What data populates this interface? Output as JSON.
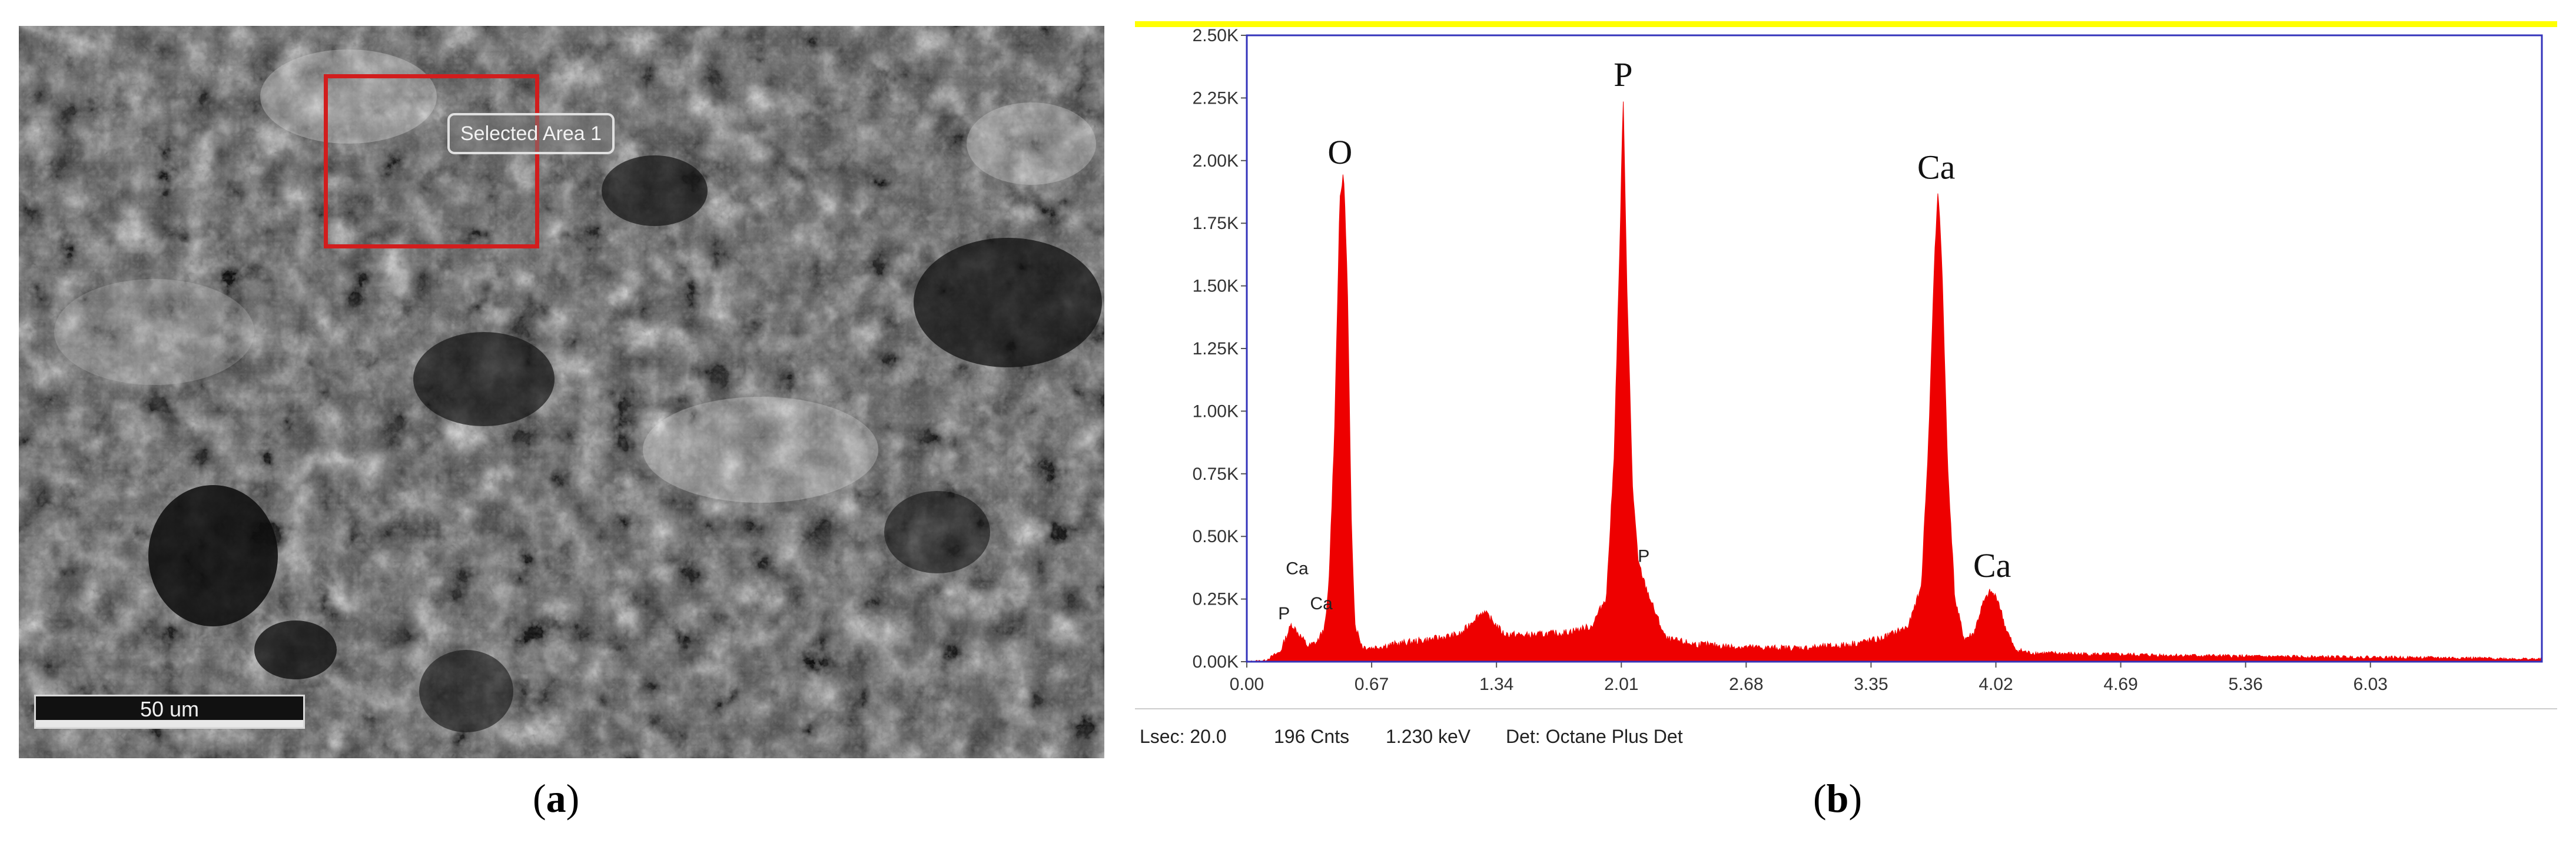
{
  "panel_a": {
    "selected_area_label": "Selected Area 1",
    "scale_bar_label": "50 um",
    "caption_open": "(",
    "caption_letter": "a",
    "caption_close": ")"
  },
  "panel_b": {
    "footer": {
      "lsec": "Lsec: 20.0",
      "cnts": "196 Cnts",
      "kev": "1.230 keV",
      "det": "Det: Octane Plus Det"
    },
    "caption_open": "(",
    "caption_letter": "b",
    "caption_close": ")"
  },
  "colors": {
    "spectrum": "#ee0000",
    "frame": "#3333bb",
    "top_band": "#ffff00",
    "selection": "#d21d1d"
  },
  "chart_data": {
    "type": "area",
    "title": "",
    "xlabel": "",
    "ylabel": "",
    "xlim": [
      0,
      6.95
    ],
    "ylim": [
      0,
      2500
    ],
    "x_ticks": [
      "0.00",
      "0.67",
      "1.34",
      "2.01",
      "2.68",
      "3.35",
      "4.02",
      "4.69",
      "5.36",
      "6.03"
    ],
    "x_tick_values": [
      0.0,
      0.67,
      1.34,
      2.01,
      2.68,
      3.35,
      4.02,
      4.69,
      5.36,
      6.03
    ],
    "y_ticks": [
      "0.00K",
      "0.25K",
      "0.50K",
      "0.75K",
      "1.00K",
      "1.25K",
      "1.50K",
      "1.75K",
      "2.00K",
      "2.25K",
      "2.50K"
    ],
    "y_tick_values": [
      0,
      250,
      500,
      750,
      1000,
      1250,
      1500,
      1750,
      2000,
      2250,
      2500
    ],
    "grid": false,
    "series": [
      {
        "points": [
          [
            0.0,
            0
          ],
          [
            0.1,
            5
          ],
          [
            0.18,
            40
          ],
          [
            0.24,
            150
          ],
          [
            0.28,
            110
          ],
          [
            0.33,
            60
          ],
          [
            0.38,
            80
          ],
          [
            0.42,
            140
          ],
          [
            0.44,
            300
          ],
          [
            0.47,
            900
          ],
          [
            0.5,
            1850
          ],
          [
            0.52,
            1950
          ],
          [
            0.54,
            1500
          ],
          [
            0.56,
            600
          ],
          [
            0.58,
            150
          ],
          [
            0.62,
            60
          ],
          [
            0.67,
            55
          ],
          [
            0.8,
            70
          ],
          [
            1.0,
            90
          ],
          [
            1.15,
            110
          ],
          [
            1.22,
            170
          ],
          [
            1.27,
            200
          ],
          [
            1.31,
            170
          ],
          [
            1.38,
            110
          ],
          [
            1.5,
            105
          ],
          [
            1.7,
            115
          ],
          [
            1.85,
            140
          ],
          [
            1.93,
            260
          ],
          [
            1.97,
            800
          ],
          [
            2.0,
            1600
          ],
          [
            2.02,
            2250
          ],
          [
            2.04,
            1500
          ],
          [
            2.07,
            700
          ],
          [
            2.1,
            400
          ],
          [
            2.14,
            300
          ],
          [
            2.19,
            200
          ],
          [
            2.25,
            90
          ],
          [
            2.4,
            70
          ],
          [
            2.6,
            60
          ],
          [
            2.8,
            55
          ],
          [
            3.0,
            55
          ],
          [
            3.2,
            65
          ],
          [
            3.4,
            90
          ],
          [
            3.55,
            140
          ],
          [
            3.62,
            300
          ],
          [
            3.66,
            900
          ],
          [
            3.69,
            1600
          ],
          [
            3.71,
            1880
          ],
          [
            3.73,
            1600
          ],
          [
            3.76,
            800
          ],
          [
            3.8,
            250
          ],
          [
            3.85,
            90
          ],
          [
            3.9,
            110
          ],
          [
            3.95,
            230
          ],
          [
            3.99,
            280
          ],
          [
            4.03,
            250
          ],
          [
            4.07,
            140
          ],
          [
            4.12,
            50
          ],
          [
            4.2,
            35
          ],
          [
            4.5,
            30
          ],
          [
            5.0,
            25
          ],
          [
            5.5,
            20
          ],
          [
            6.0,
            18
          ],
          [
            6.5,
            15
          ],
          [
            6.95,
            10
          ]
        ]
      }
    ],
    "annotations": [
      {
        "text": "P",
        "x": 0.2,
        "y": 150,
        "size": "small"
      },
      {
        "text": "Ca",
        "x": 0.27,
        "y": 330,
        "size": "small"
      },
      {
        "text": "Ca",
        "x": 0.4,
        "y": 190,
        "size": "small"
      },
      {
        "text": "O",
        "x": 0.5,
        "y": 1960,
        "size": "large"
      },
      {
        "text": "P",
        "x": 2.02,
        "y": 2270,
        "size": "large"
      },
      {
        "text": "P",
        "x": 2.13,
        "y": 380,
        "size": "small"
      },
      {
        "text": "Ca",
        "x": 3.7,
        "y": 1900,
        "size": "large"
      },
      {
        "text": "Ca",
        "x": 4.0,
        "y": 310,
        "size": "large"
      }
    ]
  }
}
